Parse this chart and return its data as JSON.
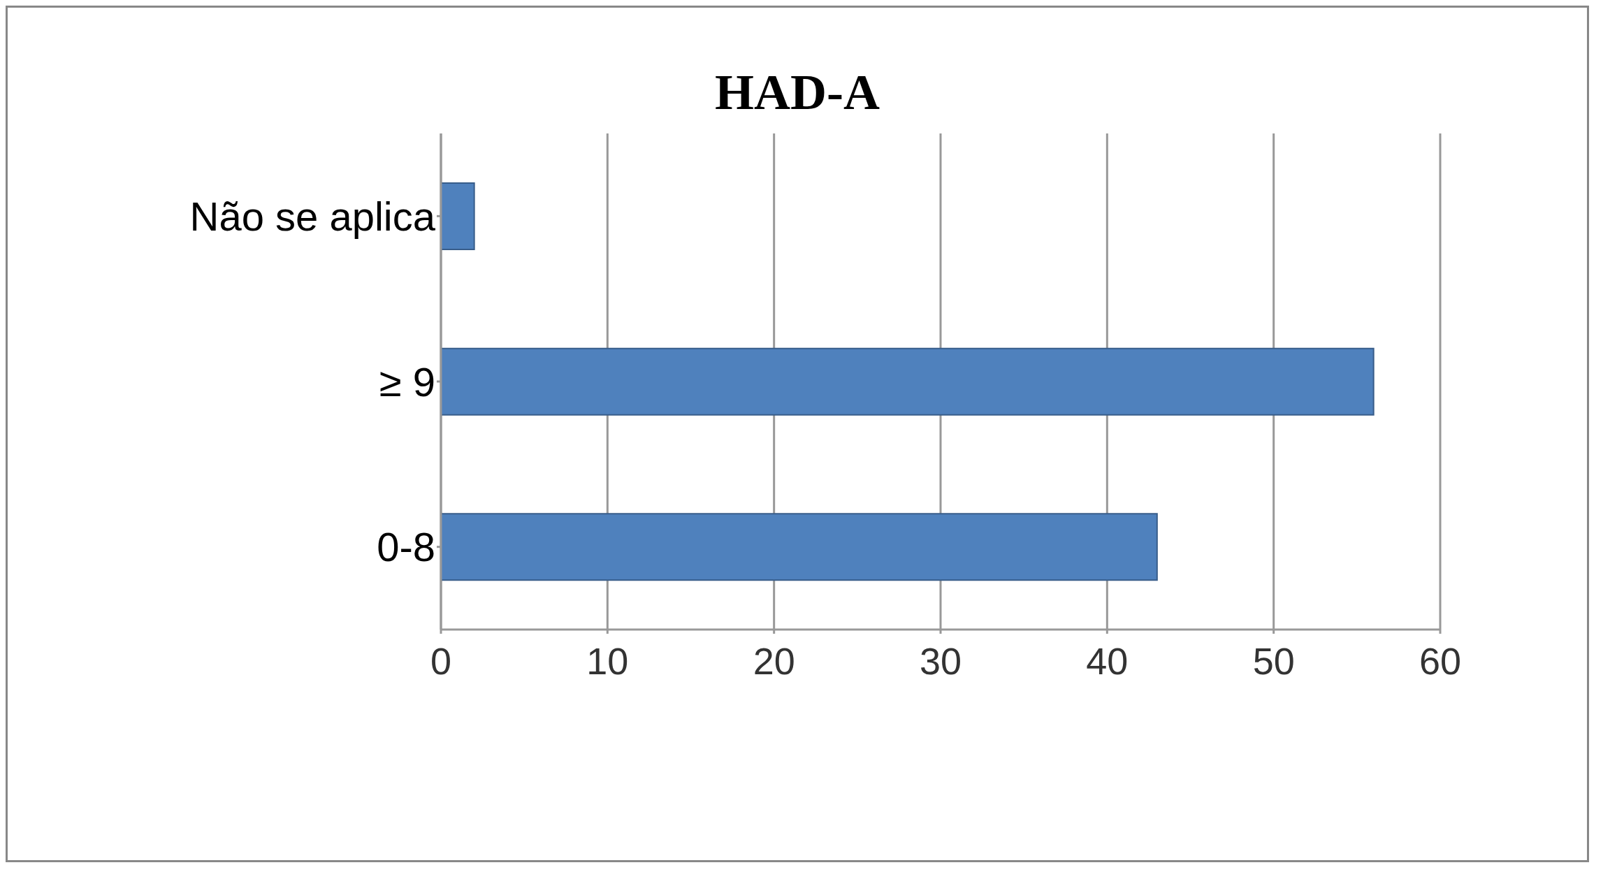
{
  "chart_data": {
    "type": "bar",
    "orientation": "horizontal",
    "title": "HAD-A",
    "categories": [
      "Não se aplica",
      "≥ 9",
      "0-8"
    ],
    "values": [
      2,
      56,
      43
    ],
    "color": "#4f81bd",
    "xlim": [
      0,
      60
    ],
    "xticks": [
      0,
      10,
      20,
      30,
      40,
      50,
      60
    ],
    "grid": "x"
  }
}
